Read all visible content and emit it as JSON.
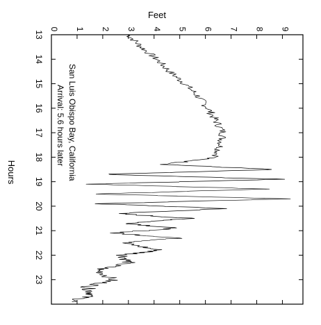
{
  "chart_data": {
    "type": "line",
    "title": "",
    "xlabel": "Hours",
    "ylabel": "Feet",
    "xlim": [
      13,
      24
    ],
    "ylim": [
      0,
      9.8
    ],
    "x_ticks": [
      13,
      14,
      15,
      16,
      17,
      18,
      19,
      20,
      21,
      22,
      23
    ],
    "y_ticks": [
      0,
      1,
      2,
      3,
      4,
      5,
      6,
      7,
      8,
      9
    ],
    "x_tick_labels": [
      "13",
      "14",
      "15",
      "16",
      "17",
      "18",
      "19",
      "20",
      "21",
      "22",
      "23"
    ],
    "y_tick_labels": [
      "0",
      "1",
      "2",
      "3",
      "4",
      "5",
      "6",
      "7",
      "8",
      "9"
    ],
    "orientation": "rotated 90 degrees clockwise",
    "grid": false,
    "annotation": [
      "San Luis Obispo Bay, California",
      "Arrival: 5.6 hours later"
    ],
    "series": [
      {
        "x": [
          13.0,
          13.5,
          14.0,
          14.5,
          15.0,
          15.5,
          16.0,
          16.5,
          17.0,
          17.5,
          18.0,
          18.3,
          18.5,
          18.7,
          18.9,
          19.1,
          19.3,
          19.5,
          19.7,
          19.9,
          20.1,
          20.3,
          20.5,
          20.7,
          20.9,
          21.1,
          21.3,
          21.5,
          21.8,
          22.0,
          22.3,
          22.6,
          23.0,
          23.3,
          23.6,
          23.9
        ],
        "y": [
          3.0,
          3.5,
          4.1,
          4.6,
          5.2,
          5.7,
          6.1,
          6.4,
          6.7,
          6.6,
          6.4,
          4.5,
          8.6,
          2.0,
          9.0,
          1.5,
          8.5,
          1.8,
          9.1,
          1.8,
          6.8,
          2.5,
          5.4,
          3.0,
          4.8,
          2.4,
          5.0,
          2.8,
          4.2,
          2.8,
          3.0,
          1.8,
          2.4,
          1.4,
          1.6,
          0.8
        ]
      }
    ]
  }
}
